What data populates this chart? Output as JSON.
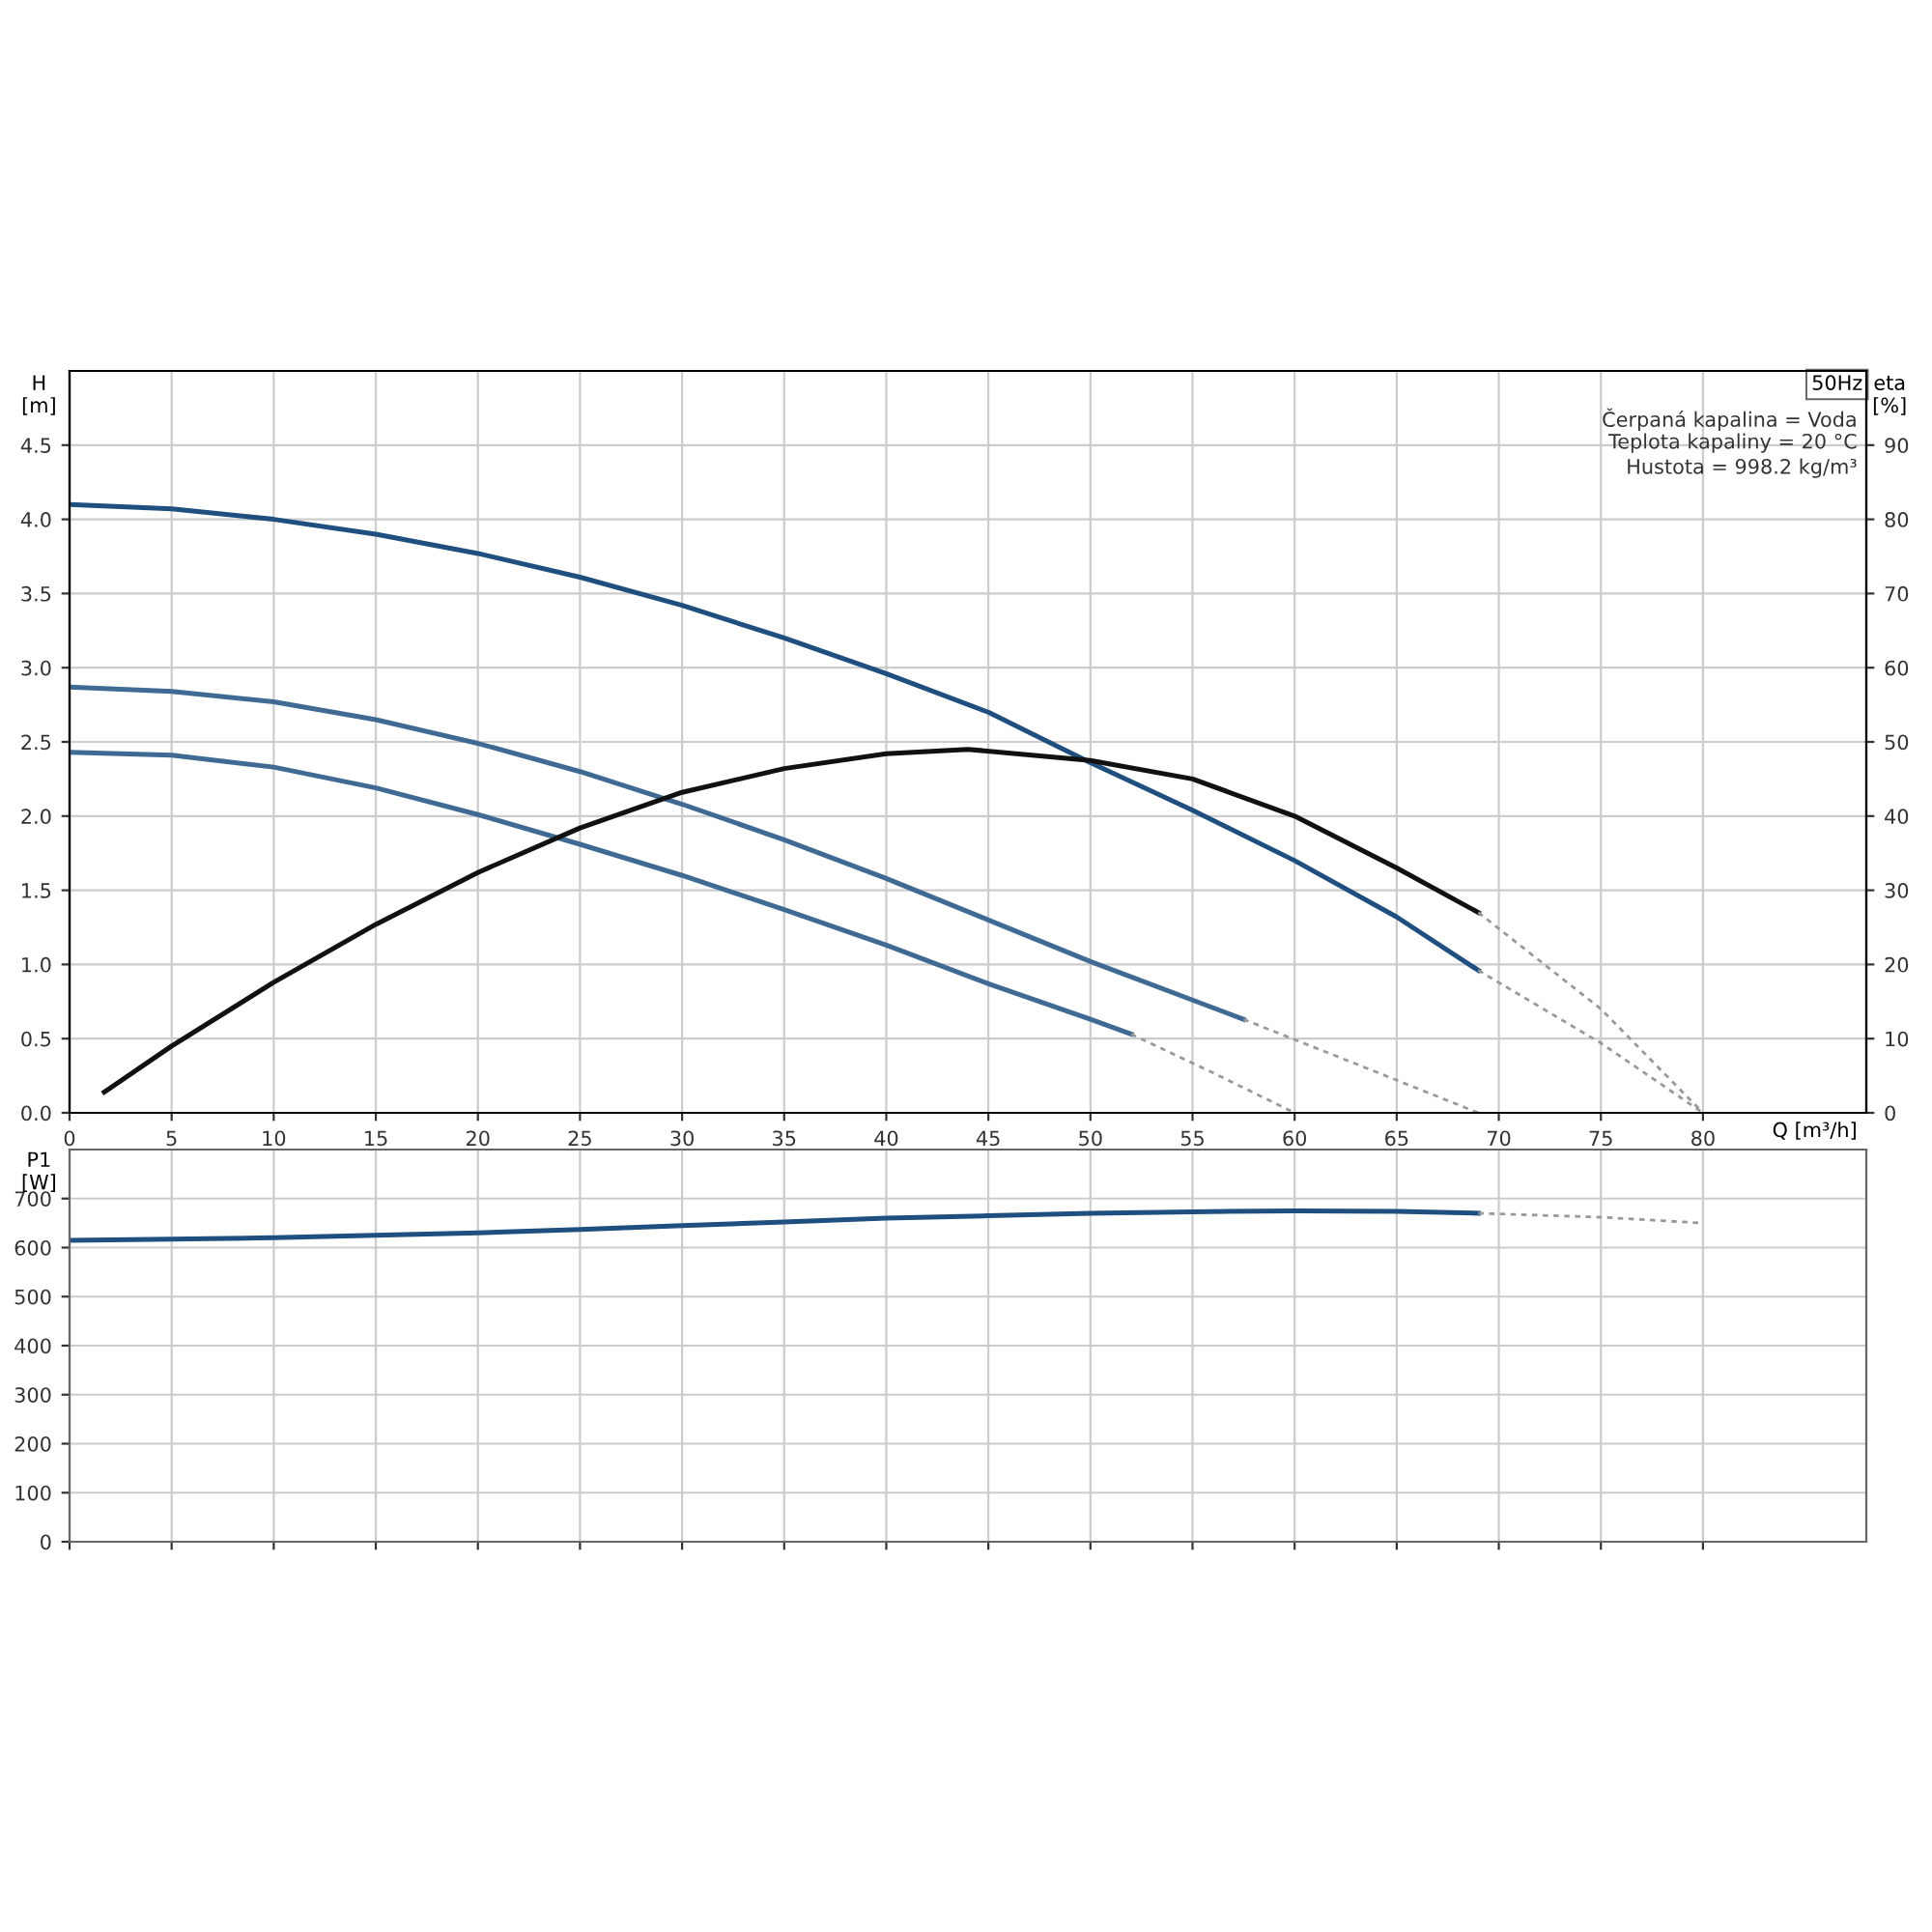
{
  "chart_data": [
    {
      "type": "line",
      "xlabel": "Q [m³/h]",
      "ylabel": "H\n[m]",
      "y2label": "eta\n[%]",
      "xlim": [
        0,
        88
      ],
      "xticks": [
        0,
        5,
        10,
        15,
        20,
        25,
        30,
        35,
        40,
        45,
        50,
        55,
        60,
        65,
        70,
        75,
        80
      ],
      "ylim": [
        0,
        5.0
      ],
      "yticks": [
        {
          "value": 0,
          "label": "0.0"
        },
        0.5,
        {
          "value": 1,
          "label": "1.0"
        },
        1.5,
        {
          "value": 2,
          "label": "2.0"
        },
        2.5,
        {
          "value": 3,
          "label": "3.0"
        },
        3.5,
        {
          "value": 4,
          "label": "4.0"
        },
        4.5
      ],
      "y2lim": [
        0,
        100
      ],
      "y2ticks": [
        0,
        10,
        20,
        30,
        40,
        50,
        60,
        70,
        80,
        90
      ],
      "grid": true,
      "legend": false,
      "annotations": [
        "50Hz",
        "Čerpaná kapalina = Voda",
        "Teplota kapaliny = 20 °C",
        "Hustota = 998.2 kg/m³"
      ],
      "series": [
        {
          "color": "#1f4f7f",
          "line_style": "solid",
          "x": [
            0,
            5,
            10,
            15,
            20,
            25,
            30,
            35,
            40,
            45,
            50,
            55,
            60,
            65,
            69
          ],
          "values": [
            4.1,
            4.07,
            4.0,
            3.9,
            3.77,
            3.61,
            3.42,
            3.2,
            2.96,
            2.7,
            2.36,
            2.04,
            1.7,
            1.32,
            0.96
          ]
        },
        {
          "color": "#999999",
          "line_style": "dashed",
          "x": [
            69,
            75,
            80
          ],
          "values": [
            0.96,
            0.47,
            0
          ]
        },
        {
          "color": "#3f6a94",
          "line_style": "solid",
          "x": [
            0,
            5,
            10,
            15,
            20,
            25,
            30,
            35,
            40,
            45,
            50,
            55,
            57.5
          ],
          "values": [
            2.87,
            2.84,
            2.77,
            2.65,
            2.49,
            2.3,
            2.08,
            1.84,
            1.58,
            1.3,
            1.02,
            0.76,
            0.63
          ]
        },
        {
          "color": "#999999",
          "line_style": "dashed",
          "x": [
            57.5,
            63,
            69
          ],
          "values": [
            0.63,
            0.33,
            0
          ]
        },
        {
          "color": "#3f6a94",
          "line_style": "solid",
          "x": [
            0,
            5,
            10,
            15,
            20,
            25,
            30,
            35,
            40,
            45,
            50,
            52
          ],
          "values": [
            2.43,
            2.41,
            2.33,
            2.19,
            2.01,
            1.81,
            1.6,
            1.37,
            1.13,
            0.87,
            0.63,
            0.53
          ]
        },
        {
          "color": "#999999",
          "line_style": "dashed",
          "x": [
            52,
            56,
            60
          ],
          "values": [
            0.53,
            0.27,
            0
          ]
        },
        {
          "color": "#111111",
          "line_style": "solid",
          "axis": "y2",
          "x": [
            1.7,
            5,
            10,
            15,
            20,
            25,
            30,
            35,
            40,
            44,
            50,
            55,
            60,
            65,
            69
          ],
          "values": [
            2.8,
            9,
            17.6,
            25.4,
            32.4,
            38.4,
            43.2,
            46.4,
            48.4,
            49,
            47.5,
            45,
            40,
            33,
            27
          ]
        },
        {
          "color": "#999999",
          "line_style": "dashed",
          "axis": "y2",
          "x": [
            69,
            75,
            80
          ],
          "values": [
            27,
            14,
            0
          ]
        }
      ]
    },
    {
      "type": "line",
      "ylabel": "P1\n[W]",
      "tick_labels": "y",
      "xlim": [
        0,
        88
      ],
      "xticks": [
        0,
        5,
        10,
        15,
        20,
        25,
        30,
        35,
        40,
        45,
        50,
        55,
        60,
        65,
        70,
        75,
        80
      ],
      "ylim": [
        0,
        800
      ],
      "yticks": [
        0,
        100,
        200,
        300,
        400,
        500,
        600,
        700
      ],
      "grid": true,
      "legend": false,
      "series": [
        {
          "color": "#1f4f7f",
          "line_style": "solid",
          "x": [
            0,
            5,
            10,
            15,
            20,
            25,
            30,
            35,
            40,
            45,
            50,
            55,
            60,
            65,
            69
          ],
          "values": [
            615,
            617,
            620,
            625,
            630,
            637,
            645,
            652,
            660,
            665,
            670,
            673,
            675,
            674,
            670
          ]
        },
        {
          "color": "#999999",
          "line_style": "dashed",
          "x": [
            69,
            75,
            80
          ],
          "values": [
            670,
            662,
            650
          ]
        }
      ]
    }
  ]
}
